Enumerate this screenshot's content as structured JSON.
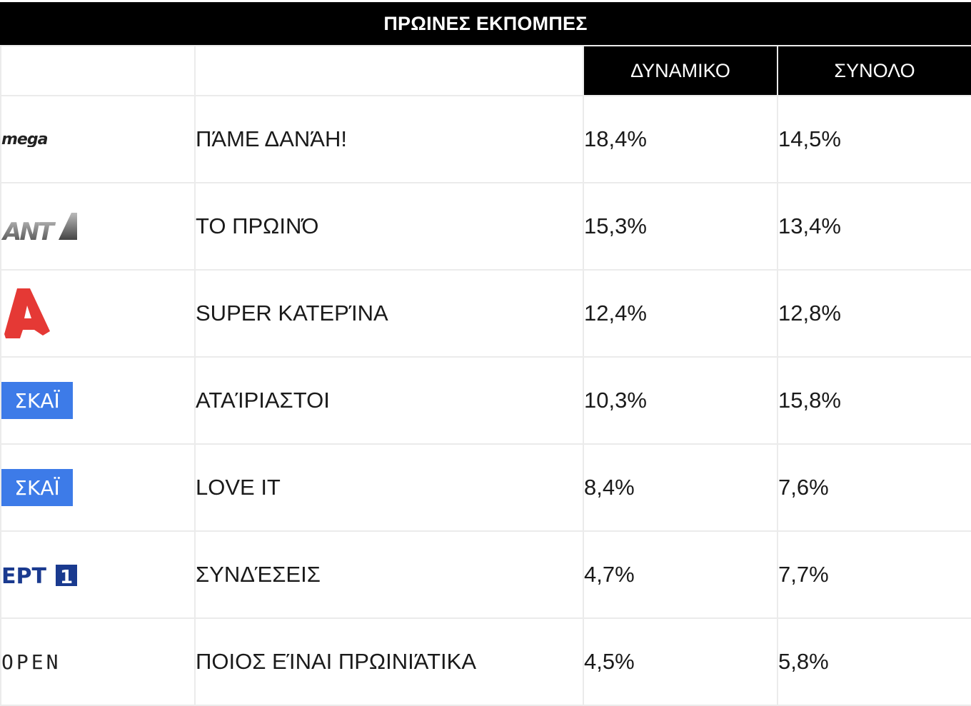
{
  "header": {
    "title": "ΠΡΩΙΝΕΣ ΕΚΠΟΜΠΕΣ"
  },
  "columns": [
    "",
    "",
    "ΔΥΝΑΜΙΚΟ",
    "ΣΥΝΟΛΟ"
  ],
  "chart_data": {
    "type": "table",
    "title": "ΠΡΩΙΝΕΣ ΕΚΠΟΜΠΕΣ",
    "columns": [
      "ΔΥΝΑΜΙΚΟ",
      "ΣΥΝΟΛΟ"
    ],
    "rows": [
      {
        "channel": "mega",
        "channel_logo_icon": "mega-logo-icon",
        "show": "ΠΆΜΕ ΔΑΝΆΗ!",
        "dynamiko": "18,4%",
        "synolo": "14,5%"
      },
      {
        "channel": "ant1",
        "channel_logo_icon": "ant1-logo-icon",
        "show": "ΤΟ ΠΡΩΙΝΌ",
        "dynamiko": "15,3%",
        "synolo": "13,4%"
      },
      {
        "channel": "alpha",
        "channel_logo_icon": "alpha-logo-icon",
        "show": "SUPER ΚΑΤΕΡΊΝΑ",
        "dynamiko": "12,4%",
        "synolo": "12,8%"
      },
      {
        "channel": "skai",
        "channel_logo_icon": "skai-logo-icon",
        "show": "ΑΤΑΊΡΙΑΣΤΟΙ",
        "dynamiko": "10,3%",
        "synolo": "15,8%"
      },
      {
        "channel": "skai",
        "channel_logo_icon": "skai-logo-icon",
        "show": "LOVE IT",
        "dynamiko": "8,4%",
        "synolo": "7,6%"
      },
      {
        "channel": "ert1",
        "channel_logo_icon": "ert1-logo-icon",
        "show": "ΣΥΝΔΈΣΕΙΣ",
        "dynamiko": "4,7%",
        "synolo": "7,7%"
      },
      {
        "channel": "open",
        "channel_logo_icon": "open-logo-icon",
        "show": "ΠΟΙΟΣ ΕΊΝΑΙ ΠΡΩΙΝΙΆΤΙΚΑ",
        "dynamiko": "4,5%",
        "synolo": "5,8%"
      }
    ]
  },
  "colors": {
    "header_bg": "#000000",
    "header_text": "#ffffff",
    "grid": "#ebebeb",
    "alpha_red": "#e53935",
    "skai_blue": "#3d7be8",
    "ert_blue": "#1a3a8f"
  }
}
